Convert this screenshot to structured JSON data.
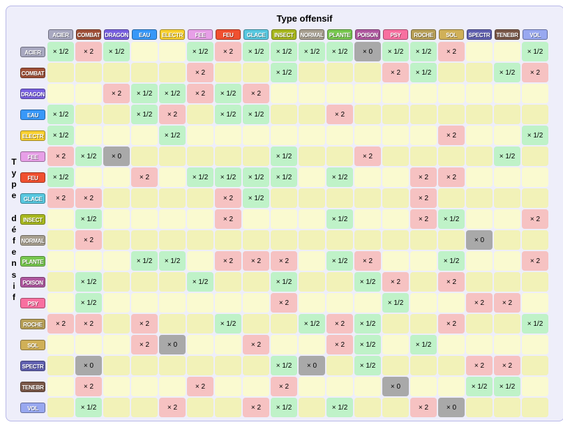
{
  "title_offense": "Type offensif",
  "title_defense_chars": [
    "T",
    "y",
    "p",
    "e",
    "",
    "d",
    "é",
    "f",
    "e",
    "n",
    "s",
    "i",
    "f"
  ],
  "types": [
    "ACIER",
    "COMBAT",
    "DRAGON",
    "EAU",
    "ELECTR",
    "FEE",
    "FEU",
    "GLACE",
    "INSECT",
    "NORMAL",
    "PLANTE",
    "POISON",
    "PSY",
    "ROCHE",
    "SOL",
    "SPECTR",
    "TENEBR",
    "VOL"
  ],
  "type_colors": {
    "ACIER": "#a8a8c0",
    "COMBAT": "#a05038",
    "DRAGON": "#7860e0",
    "EAU": "#3898f8",
    "ELECTR": "#f8d030",
    "FEE": "#e79fe7",
    "FEU": "#f05030",
    "GLACE": "#58c8e0",
    "INSECT": "#a8b820",
    "NORMAL": "#a8a090",
    "PLANTE": "#78c850",
    "POISON": "#b058a0",
    "PSY": "#f870a0",
    "ROCHE": "#b8a058",
    "SOL": "#d0b058",
    "SPECTR": "#6060b0",
    "TENEBR": "#7a5848",
    "VOL": "#98a8f0"
  },
  "cell_palette": {
    "empty": "#fafad0",
    "half": "#bff2c8",
    "double": "#f6c2c2",
    "zero": "#a9a9a9",
    "alt_empty": "#f2f2b8"
  },
  "labels": {
    "half": "× 1/2",
    "double": "× 2",
    "zero": "× 0"
  },
  "matrix": [
    [
      "half",
      "double",
      "half",
      "",
      "",
      "half",
      "double",
      "half",
      "half",
      "half",
      "half",
      "zero",
      "half",
      "half",
      "double",
      "",
      "",
      "half"
    ],
    [
      "",
      "",
      "",
      "",
      "",
      "double",
      "",
      "",
      "half",
      "",
      "",
      "",
      "double",
      "half",
      "",
      "",
      "half",
      "double"
    ],
    [
      "",
      "",
      "double",
      "half",
      "half",
      "double",
      "half",
      "double",
      "",
      "",
      "",
      "",
      "",
      "",
      "",
      "",
      "",
      ""
    ],
    [
      "half",
      "",
      "",
      "half",
      "double",
      "",
      "half",
      "half",
      "",
      "",
      "double",
      "",
      "",
      "",
      "",
      "",
      "",
      ""
    ],
    [
      "half",
      "",
      "",
      "",
      "half",
      "",
      "",
      "",
      "",
      "",
      "",
      "",
      "",
      "",
      "double",
      "",
      "",
      "half"
    ],
    [
      "double",
      "half",
      "zero",
      "",
      "",
      "",
      "",
      "",
      "half",
      "",
      "",
      "double",
      "",
      "",
      "",
      "",
      "half",
      ""
    ],
    [
      "half",
      "",
      "",
      "double",
      "",
      "half",
      "half",
      "half",
      "half",
      "",
      "half",
      "",
      "",
      "double",
      "double",
      "",
      "",
      ""
    ],
    [
      "double",
      "double",
      "",
      "",
      "",
      "",
      "double",
      "half",
      "",
      "",
      "",
      "",
      "",
      "double",
      "",
      "",
      "",
      ""
    ],
    [
      "",
      "half",
      "",
      "",
      "",
      "",
      "double",
      "",
      "",
      "",
      "half",
      "",
      "",
      "double",
      "half",
      "",
      "",
      "double"
    ],
    [
      "",
      "double",
      "",
      "",
      "",
      "",
      "",
      "",
      "",
      "",
      "",
      "",
      "",
      "",
      "",
      "zero",
      "",
      ""
    ],
    [
      "",
      "",
      "",
      "half",
      "half",
      "",
      "double",
      "double",
      "double",
      "",
      "half",
      "double",
      "",
      "",
      "half",
      "",
      "",
      "double"
    ],
    [
      "",
      "half",
      "",
      "",
      "",
      "half",
      "",
      "",
      "half",
      "",
      "",
      "half",
      "double",
      "",
      "double",
      "",
      "",
      ""
    ],
    [
      "",
      "half",
      "",
      "",
      "",
      "",
      "",
      "",
      "double",
      "",
      "",
      "",
      "half",
      "",
      "",
      "double",
      "double",
      ""
    ],
    [
      "double",
      "double",
      "",
      "double",
      "",
      "",
      "half",
      "",
      "",
      "half",
      "double",
      "half",
      "",
      "",
      "double",
      "",
      "",
      "half"
    ],
    [
      "",
      "",
      "",
      "double",
      "zero",
      "",
      "",
      "double",
      "",
      "",
      "double",
      "half",
      "",
      "half",
      "",
      "",
      "",
      ""
    ],
    [
      "",
      "zero",
      "",
      "",
      "",
      "",
      "",
      "",
      "half",
      "zero",
      "",
      "half",
      "",
      "",
      "",
      "double",
      "double",
      ""
    ],
    [
      "",
      "double",
      "",
      "",
      "",
      "double",
      "",
      "",
      "double",
      "",
      "",
      "",
      "zero",
      "",
      "",
      "half",
      "half",
      ""
    ],
    [
      "",
      "half",
      "",
      "",
      "double",
      "",
      "",
      "double",
      "half",
      "",
      "half",
      "",
      "",
      "double",
      "zero",
      "",
      "",
      ""
    ]
  ]
}
